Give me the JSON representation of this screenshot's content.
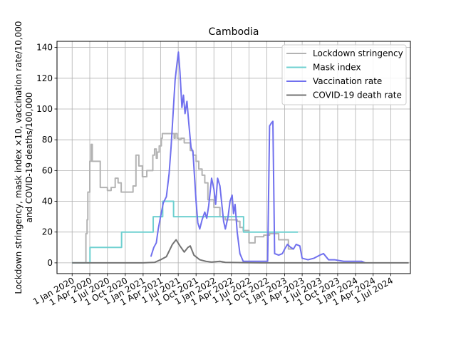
{
  "chart_data": {
    "type": "line",
    "title": "Cambodia",
    "ylabel_line1": "Lockdown stringency, mask index ×10, vaccination rate/10,000",
    "ylabel_line2": "and COVID-19 deaths/100,000",
    "xlabel": "",
    "ylim": [
      -7,
      144
    ],
    "yticks": [
      0,
      20,
      40,
      60,
      80,
      100,
      120,
      140
    ],
    "xlim": [
      "2019-10-15",
      "2024-10-10"
    ],
    "xticks": [
      "2020-01-01",
      "2020-04-01",
      "2020-07-01",
      "2020-10-01",
      "2021-01-01",
      "2021-04-01",
      "2021-07-01",
      "2021-10-01",
      "2022-01-01",
      "2022-04-01",
      "2022-07-01",
      "2022-10-01",
      "2023-01-01",
      "2023-04-01",
      "2023-07-01",
      "2023-10-01",
      "2024-01-01",
      "2024-04-01",
      "2024-07-01"
    ],
    "xtick_labels": [
      "1 Jan 2020",
      "1 Apr 2020",
      "1 Jul 2020",
      "1 Oct 2020",
      "1 Jan 2021",
      "1 Apr 2021",
      "1 Jul 2021",
      "1 Oct 2021",
      "1 Jan 2022",
      "1 Apr 2022",
      "1 Jul 2022",
      "1 Oct 2022",
      "1 Jan 2023",
      "1 Apr 2023",
      "1 Jul 2023",
      "1 Oct 2023",
      "1 Jan 2024",
      "1 Apr 2024",
      "1 Jul 2024"
    ],
    "grid": true,
    "legend_position": "top-right",
    "series": [
      {
        "name": "Lockdown stringency",
        "color": "#b3b3b3",
        "step": true,
        "points": [
          [
            "2020-01-01",
            0
          ],
          [
            "2020-03-10",
            0
          ],
          [
            "2020-03-12",
            19
          ],
          [
            "2020-03-18",
            28
          ],
          [
            "2020-03-22",
            46
          ],
          [
            "2020-04-01",
            66
          ],
          [
            "2020-04-08",
            77
          ],
          [
            "2020-04-14",
            66
          ],
          [
            "2020-05-20",
            66
          ],
          [
            "2020-05-25",
            49
          ],
          [
            "2020-07-01",
            47
          ],
          [
            "2020-07-20",
            49
          ],
          [
            "2020-08-10",
            55
          ],
          [
            "2020-08-25",
            52
          ],
          [
            "2020-09-10",
            46
          ],
          [
            "2020-11-10",
            50
          ],
          [
            "2020-11-25",
            70
          ],
          [
            "2020-12-10",
            63
          ],
          [
            "2020-12-28",
            56
          ],
          [
            "2021-01-20",
            60
          ],
          [
            "2021-02-20",
            70
          ],
          [
            "2021-03-01",
            74
          ],
          [
            "2021-03-10",
            68
          ],
          [
            "2021-03-15",
            72
          ],
          [
            "2021-03-25",
            76
          ],
          [
            "2021-04-05",
            81
          ],
          [
            "2021-04-10",
            84
          ],
          [
            "2021-06-10",
            81
          ],
          [
            "2021-06-15",
            84
          ],
          [
            "2021-06-25",
            81
          ],
          [
            "2021-07-05",
            80
          ],
          [
            "2021-07-15",
            81
          ],
          [
            "2021-08-01",
            78
          ],
          [
            "2021-09-01",
            73
          ],
          [
            "2021-09-15",
            70
          ],
          [
            "2021-10-01",
            66
          ],
          [
            "2021-10-15",
            61
          ],
          [
            "2021-11-01",
            57
          ],
          [
            "2021-11-15",
            52
          ],
          [
            "2021-12-01",
            41
          ],
          [
            "2022-01-01",
            36
          ],
          [
            "2022-02-01",
            30
          ],
          [
            "2022-03-01",
            28
          ],
          [
            "2022-05-01",
            27
          ],
          [
            "2022-05-15",
            23
          ],
          [
            "2022-06-01",
            21
          ],
          [
            "2022-07-01",
            13
          ],
          [
            "2022-08-01",
            17
          ],
          [
            "2022-09-15",
            18
          ],
          [
            "2022-10-15",
            19
          ],
          [
            "2022-12-01",
            15
          ],
          [
            "2023-01-20",
            9
          ],
          [
            "2023-02-15",
            9
          ]
        ]
      },
      {
        "name": "Mask index",
        "color": "#6fd0d0",
        "step": true,
        "points": [
          [
            "2020-01-01",
            0
          ],
          [
            "2020-04-01",
            0
          ],
          [
            "2020-04-02",
            10
          ],
          [
            "2020-09-10",
            10
          ],
          [
            "2020-09-12",
            20
          ],
          [
            "2021-02-20",
            20
          ],
          [
            "2021-02-22",
            30
          ],
          [
            "2021-04-10",
            30
          ],
          [
            "2021-04-12",
            40
          ],
          [
            "2021-06-05",
            40
          ],
          [
            "2021-06-07",
            30
          ],
          [
            "2022-06-01",
            30
          ],
          [
            "2022-06-03",
            20
          ],
          [
            "2023-03-10",
            20
          ]
        ]
      },
      {
        "name": "Vaccination rate",
        "color": "#7070ee",
        "step": false,
        "points": [
          [
            "2021-02-10",
            4
          ],
          [
            "2021-02-25",
            10
          ],
          [
            "2021-03-10",
            13
          ],
          [
            "2021-03-20",
            22
          ],
          [
            "2021-04-01",
            30
          ],
          [
            "2021-04-15",
            39
          ],
          [
            "2021-05-01",
            43
          ],
          [
            "2021-05-15",
            58
          ],
          [
            "2021-05-25",
            75
          ],
          [
            "2021-06-05",
            98
          ],
          [
            "2021-06-15",
            119
          ],
          [
            "2021-06-25",
            130
          ],
          [
            "2021-07-02",
            137
          ],
          [
            "2021-07-10",
            124
          ],
          [
            "2021-07-20",
            101
          ],
          [
            "2021-07-28",
            109
          ],
          [
            "2021-08-05",
            97
          ],
          [
            "2021-08-15",
            105
          ],
          [
            "2021-08-25",
            90
          ],
          [
            "2021-09-05",
            75
          ],
          [
            "2021-09-15",
            72
          ],
          [
            "2021-09-22",
            58
          ],
          [
            "2021-10-01",
            40
          ],
          [
            "2021-10-10",
            26
          ],
          [
            "2021-10-20",
            22
          ],
          [
            "2021-11-01",
            28
          ],
          [
            "2021-11-15",
            33
          ],
          [
            "2021-11-25",
            29
          ],
          [
            "2021-12-05",
            37
          ],
          [
            "2021-12-20",
            55
          ],
          [
            "2022-01-01",
            48
          ],
          [
            "2022-01-10",
            38
          ],
          [
            "2022-01-20",
            55
          ],
          [
            "2022-02-01",
            50
          ],
          [
            "2022-02-20",
            27
          ],
          [
            "2022-03-01",
            22
          ],
          [
            "2022-03-15",
            30
          ],
          [
            "2022-03-25",
            40
          ],
          [
            "2022-04-05",
            44
          ],
          [
            "2022-04-12",
            32
          ],
          [
            "2022-04-20",
            38
          ],
          [
            "2022-05-01",
            20
          ],
          [
            "2022-05-15",
            6
          ],
          [
            "2022-06-01",
            1
          ],
          [
            "2022-09-01",
            1
          ],
          [
            "2022-10-05",
            1
          ],
          [
            "2022-10-15",
            89
          ],
          [
            "2022-10-25",
            91
          ],
          [
            "2022-11-01",
            92
          ],
          [
            "2022-11-10",
            6
          ],
          [
            "2022-12-01",
            5
          ],
          [
            "2022-12-20",
            6
          ],
          [
            "2023-01-01",
            9
          ],
          [
            "2023-01-15",
            12
          ],
          [
            "2023-02-01",
            10
          ],
          [
            "2023-02-15",
            9
          ],
          [
            "2023-03-01",
            12
          ],
          [
            "2023-03-20",
            11
          ],
          [
            "2023-04-01",
            3
          ],
          [
            "2023-05-01",
            2
          ],
          [
            "2023-06-01",
            3
          ],
          [
            "2023-07-01",
            5
          ],
          [
            "2023-07-20",
            6
          ],
          [
            "2023-08-15",
            2
          ],
          [
            "2023-09-15",
            2
          ],
          [
            "2023-11-01",
            1
          ],
          [
            "2023-12-01",
            1
          ],
          [
            "2024-01-01",
            1
          ],
          [
            "2024-02-01",
            1
          ],
          [
            "2024-02-20",
            0
          ]
        ]
      },
      {
        "name": "COVID-19 death rate",
        "color": "#737373",
        "step": false,
        "points": [
          [
            "2020-01-01",
            0
          ],
          [
            "2021-01-01",
            0
          ],
          [
            "2021-03-01",
            0.3
          ],
          [
            "2021-04-01",
            2
          ],
          [
            "2021-05-01",
            4
          ],
          [
            "2021-06-01",
            12
          ],
          [
            "2021-06-20",
            15
          ],
          [
            "2021-07-10",
            11
          ],
          [
            "2021-08-01",
            7
          ],
          [
            "2021-08-20",
            10
          ],
          [
            "2021-09-01",
            11
          ],
          [
            "2021-09-20",
            5
          ],
          [
            "2021-10-20",
            2
          ],
          [
            "2021-11-20",
            1
          ],
          [
            "2021-12-20",
            0.5
          ],
          [
            "2022-02-01",
            1
          ],
          [
            "2022-03-01",
            0.3
          ],
          [
            "2022-06-01",
            0.1
          ],
          [
            "2022-09-01",
            0
          ],
          [
            "2024-10-01",
            0
          ]
        ]
      }
    ]
  }
}
